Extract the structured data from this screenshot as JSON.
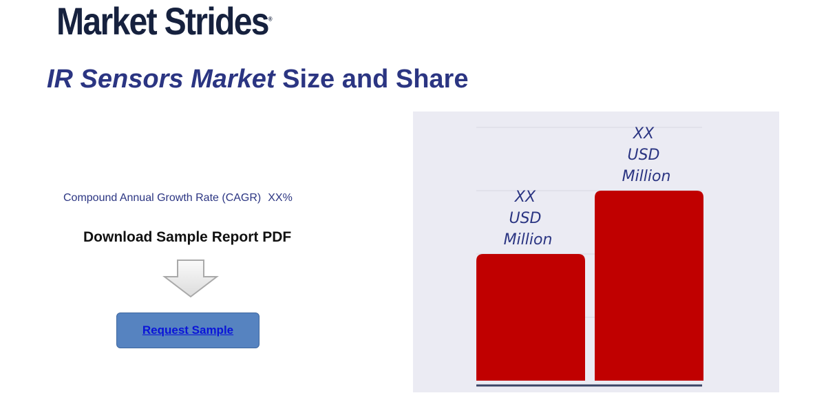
{
  "logo": {
    "text": "Market Strides",
    "mark": "®"
  },
  "title": {
    "italic": "IR Sensors Market",
    "rest": " Size and Share"
  },
  "cagr": {
    "label": "Compound Annual Growth Rate (CAGR)",
    "value": "XX%"
  },
  "download": {
    "label": "Download Sample Report PDF",
    "icon": "arrow-down-icon"
  },
  "request_button": {
    "label": "Request Sample"
  },
  "colors": {
    "bar": "#c00000",
    "panel": "#ebebf3",
    "text": "#2b3582"
  },
  "chart_data": {
    "type": "bar",
    "categories": [
      "",
      ""
    ],
    "values": [
      2,
      3
    ],
    "data_labels": [
      [
        "XX",
        "USD",
        "Million"
      ],
      [
        "XX",
        "USD",
        "Million"
      ]
    ],
    "ylim": [
      0,
      4
    ],
    "grid": true,
    "title": "",
    "xlabel": "",
    "ylabel": ""
  }
}
